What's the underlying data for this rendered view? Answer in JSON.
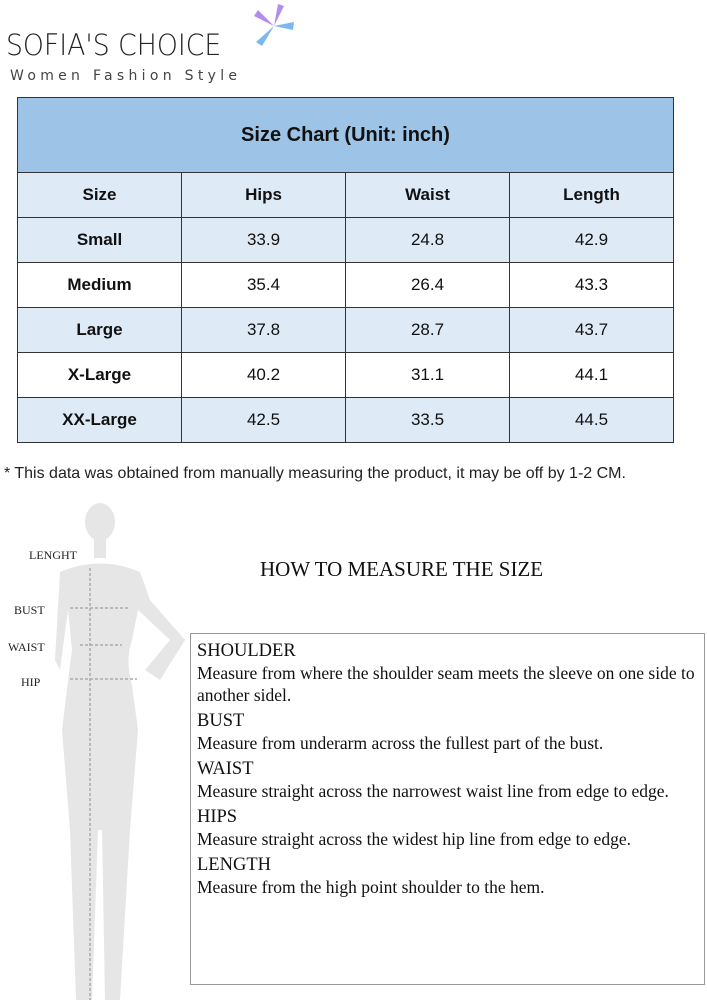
{
  "brand": {
    "name": "SOFIA'S CHOICE",
    "tagline": "Women Fashion Style",
    "colors": {
      "mark1": "#7ab8f0",
      "mark2": "#b48cf0"
    }
  },
  "table": {
    "title": "Size Chart (Unit: inch)",
    "headers": [
      "Size",
      "Hips",
      "Waist",
      "Length"
    ],
    "rows": [
      [
        "Small",
        "33.9",
        "24.8",
        "42.9"
      ],
      [
        "Medium",
        "35.4",
        "26.4",
        "43.3"
      ],
      [
        "Large",
        "37.8",
        "28.7",
        "43.7"
      ],
      [
        "X-Large",
        "40.2",
        "31.1",
        "44.1"
      ],
      [
        "XX-Large",
        "42.5",
        "33.5",
        "44.5"
      ]
    ],
    "colors": {
      "title_bg": "#9dc3e6",
      "row_blue": "#deebf7"
    }
  },
  "note": "* This data was obtained from manually measuring the product, it may be off by 1-2 CM.",
  "figure": {
    "labels": [
      "LENGHT",
      "BUST",
      "WAIST",
      "HIP"
    ]
  },
  "measure": {
    "title": "HOW TO MEASURE THE SIZE",
    "items": [
      {
        "name": "SHOULDER",
        "desc": "Measure from where the shoulder seam meets the sleeve on one side to another sidel."
      },
      {
        "name": "BUST",
        "desc": "Measure from underarm across the fullest part of the bust."
      },
      {
        "name": "WAIST",
        "desc": "Measure straight across the narrowest waist line from edge to edge."
      },
      {
        "name": "HIPS",
        "desc": "Measure straight across the widest hip line from edge to edge."
      },
      {
        "name": "LENGTH",
        "desc": "Measure from the high point shoulder to the hem."
      }
    ]
  }
}
